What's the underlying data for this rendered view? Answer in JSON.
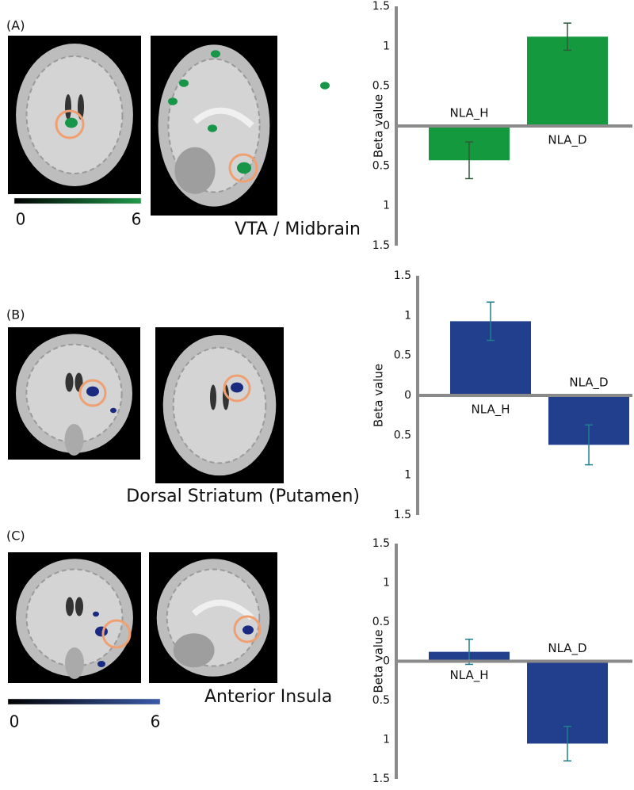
{
  "chart_data": [
    {
      "type": "bar",
      "panel_label": "(A)",
      "y_label": "Beta value",
      "image_caption": "VTA / Midbrain",
      "colorbar_labels": [
        0,
        6
      ],
      "colorbar_color": "#1f9a4a",
      "categories": [
        "NLA_H",
        "NLA_D"
      ],
      "values": [
        -0.43,
        1.12
      ],
      "errors": [
        0.23,
        0.17
      ],
      "color": "#15993e",
      "error_color": "#2f5a3a",
      "ylim": [
        -1.5,
        1.5
      ],
      "yticks": [
        {
          "value": -1.5,
          "label": "1.5"
        },
        {
          "value": -1,
          "label": "1"
        },
        {
          "value": -0.5,
          "label": "0.5"
        },
        0,
        0.5,
        1,
        1.5
      ]
    },
    {
      "type": "bar",
      "panel_label": "(B)",
      "y_label": "Beta value",
      "image_caption": "Dorsal Striatum (Putamen)",
      "categories": [
        "NLA_H",
        "NLA_D"
      ],
      "values": [
        0.93,
        -0.62
      ],
      "errors": [
        0.24,
        0.25
      ],
      "color": "#213f8c",
      "error_color": "#1f7f8f",
      "ylim": [
        -1.5,
        1.5
      ],
      "yticks": [
        {
          "value": -1.5,
          "label": "1.5"
        },
        {
          "value": -1,
          "label": "1"
        },
        {
          "value": -0.5,
          "label": "0.5"
        },
        0,
        0.5,
        1,
        1.5
      ]
    },
    {
      "type": "bar",
      "panel_label": "(C)",
      "y_label": "Beta value",
      "image_caption": "Anterior Insula",
      "colorbar_labels": [
        0,
        6
      ],
      "colorbar_color": "#3a5aa8",
      "categories": [
        "NLA_H",
        "NLA_D"
      ],
      "values": [
        0.12,
        -1.05
      ],
      "errors": [
        0.16,
        0.22
      ],
      "color": "#213f8c",
      "error_color": "#1f7f8f",
      "ylim": [
        -1.5,
        1.5
      ],
      "yticks": [
        {
          "value": -1.5,
          "label": "1.5"
        },
        {
          "value": -1,
          "label": "1"
        },
        {
          "value": -0.5,
          "label": "0.5"
        },
        0,
        0.5,
        1,
        1.5
      ]
    }
  ]
}
